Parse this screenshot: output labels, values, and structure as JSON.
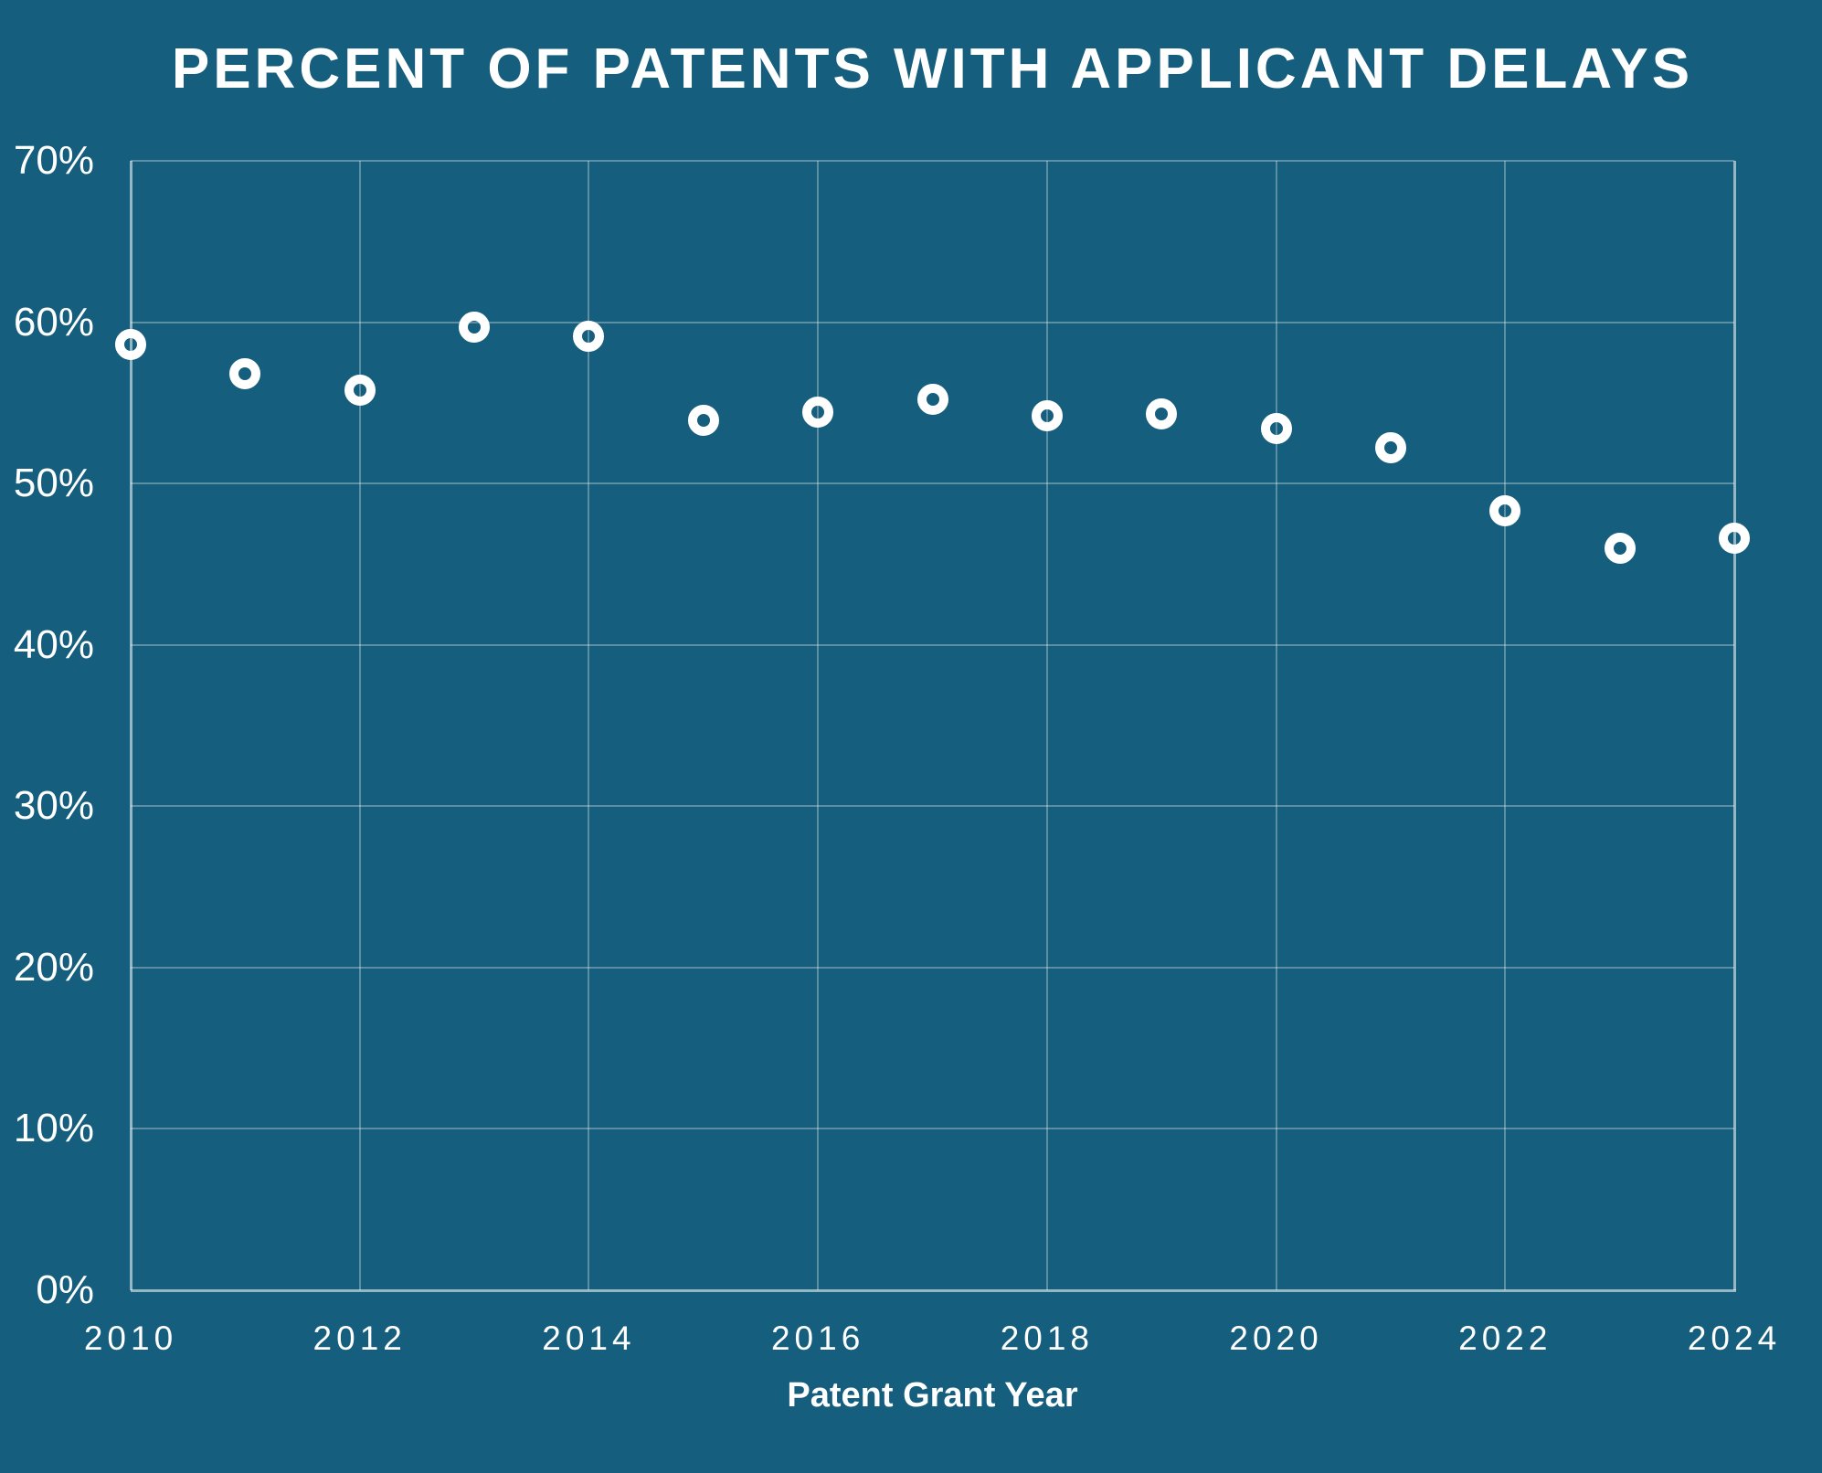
{
  "page": {
    "background_color": "#165E7D",
    "text_color": "#FFFFFF",
    "gridline_color": "rgba(255,255,255,0.30)",
    "axis_line_color": "rgba(255,255,255,0.55)",
    "marker_color": "#FFFFFF"
  },
  "chart_data": {
    "type": "scatter",
    "title": "PERCENT OF PATENTS WITH APPLICANT DELAYS",
    "xlabel": "Patent Grant Year",
    "ylabel": "",
    "x": [
      2010,
      2011,
      2012,
      2013,
      2014,
      2015,
      2016,
      2017,
      2018,
      2019,
      2020,
      2021,
      2022,
      2023,
      2024
    ],
    "values": [
      58.6,
      56.8,
      55.8,
      59.7,
      59.1,
      53.9,
      54.4,
      55.2,
      54.2,
      54.3,
      53.4,
      52.2,
      48.3,
      46.0,
      46.6
    ],
    "xlim": [
      2010,
      2024
    ],
    "ylim": [
      0,
      70
    ],
    "xticks": {
      "values": [
        2010,
        2012,
        2014,
        2016,
        2018,
        2020,
        2022,
        2024
      ],
      "labels": [
        "2010",
        "2012",
        "2014",
        "2016",
        "2018",
        "2020",
        "2022",
        "2024"
      ]
    },
    "yticks": {
      "values": [
        0,
        10,
        20,
        30,
        40,
        50,
        60,
        70
      ],
      "labels": [
        "0%",
        "10%",
        "20%",
        "30%",
        "40%",
        "50%",
        "60%",
        "70%"
      ]
    },
    "grid": true,
    "legend": null,
    "marker": "open-circle"
  }
}
